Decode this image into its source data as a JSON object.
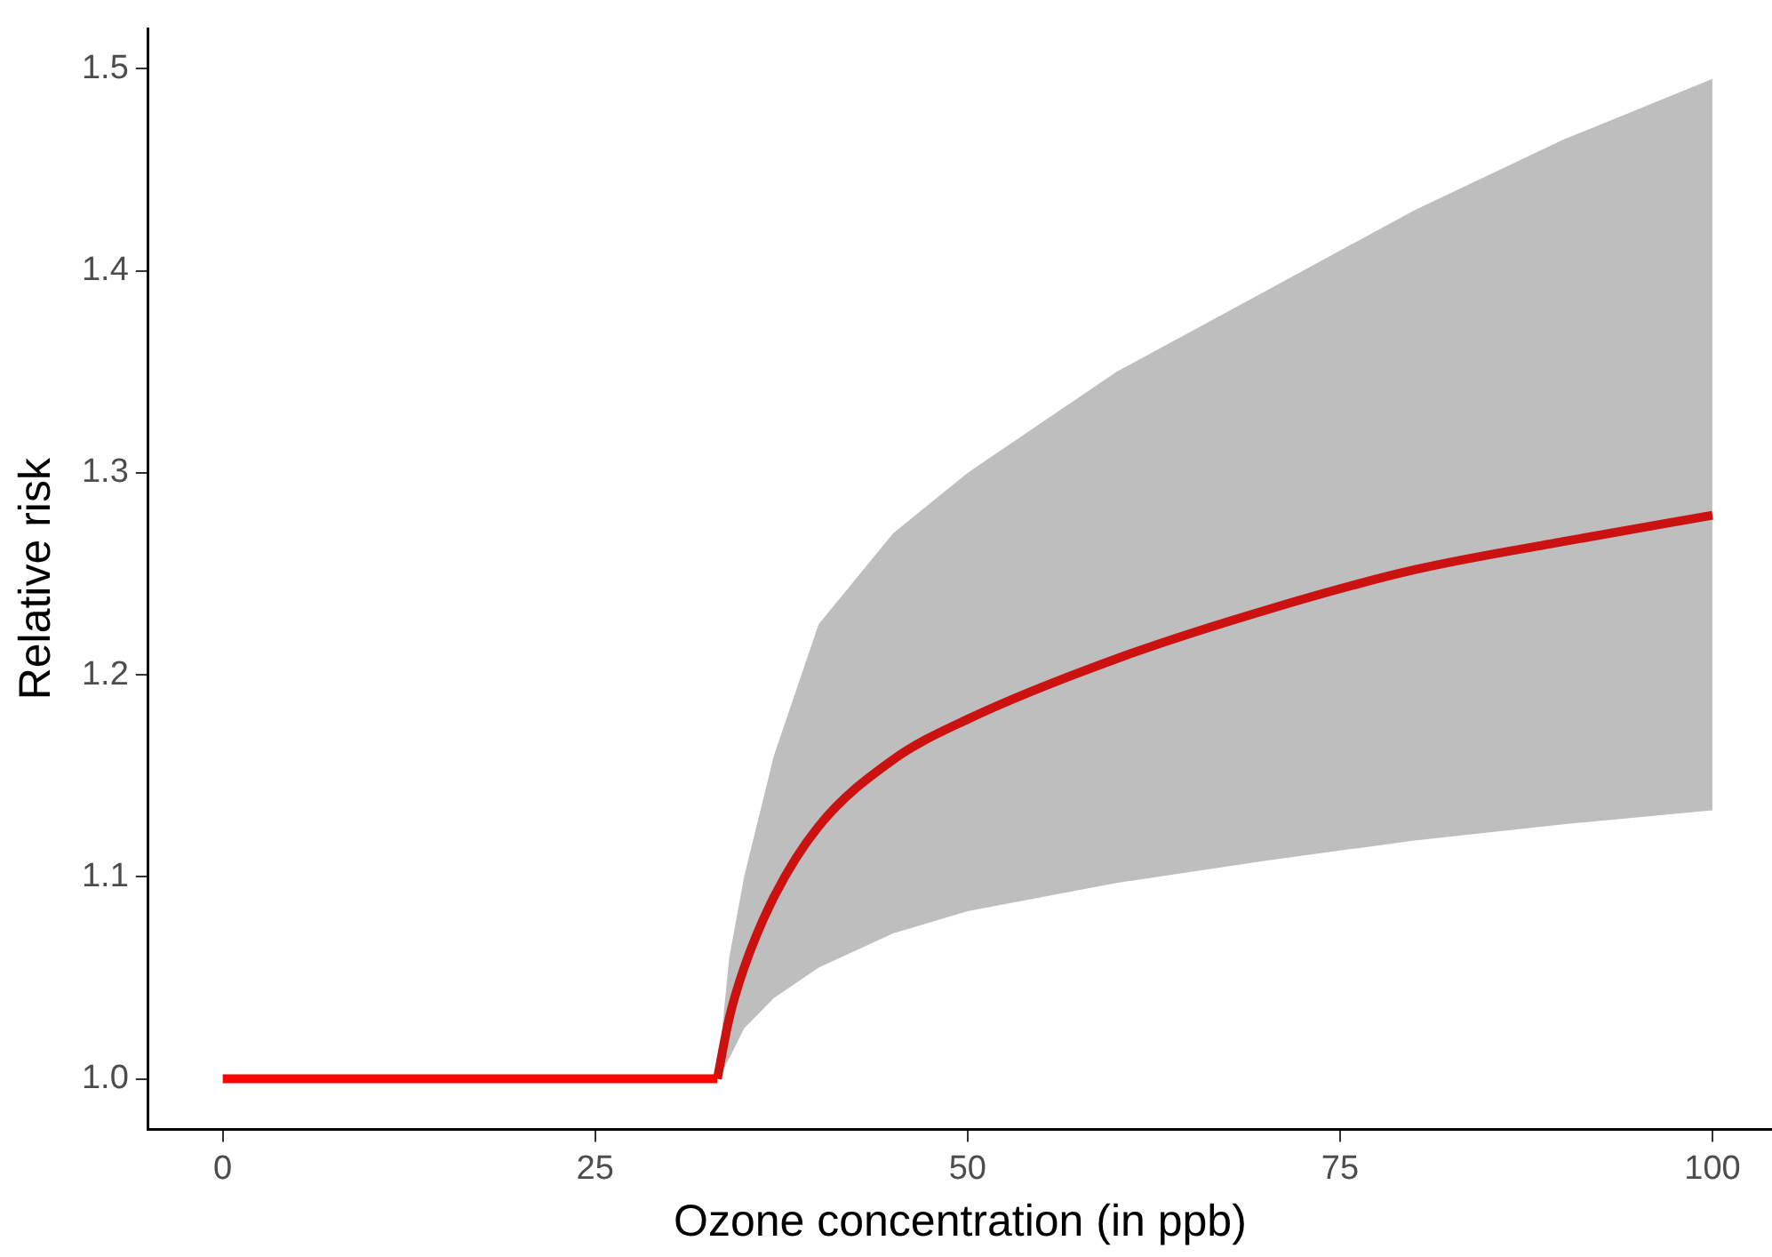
{
  "chart_data": {
    "type": "line",
    "xlabel": "Ozone concentration (in ppb)",
    "ylabel": "Relative risk",
    "xlim": [
      -5,
      104
    ],
    "ylim": [
      0.975,
      1.52
    ],
    "xticks": [
      0,
      25,
      50,
      75,
      100
    ],
    "yticks": [
      {
        "value": 1,
        "label": "1.0"
      },
      1.1,
      1.2,
      1.3,
      1.4,
      1.5
    ],
    "grid": false,
    "legend": false,
    "series": [
      {
        "color": "#ff0000",
        "x": [
          0,
          33.2
        ],
        "values": [
          1.0,
          1.0
        ]
      },
      {
        "color": "#cc1111",
        "x": [
          33.2,
          34,
          35,
          37,
          40,
          45,
          50,
          60,
          70,
          80,
          90,
          100
        ],
        "values": [
          1.0,
          1.03,
          1.055,
          1.09,
          1.125,
          1.158,
          1.178,
          1.208,
          1.232,
          1.252,
          1.266,
          1.279
        ],
        "lower": [
          1.0,
          1.01,
          1.025,
          1.04,
          1.055,
          1.072,
          1.083,
          1.097,
          1.108,
          1.118,
          1.126,
          1.133
        ],
        "upper": [
          1.0,
          1.06,
          1.1,
          1.16,
          1.225,
          1.27,
          1.3,
          1.35,
          1.39,
          1.43,
          1.465,
          1.495
        ]
      }
    ]
  }
}
